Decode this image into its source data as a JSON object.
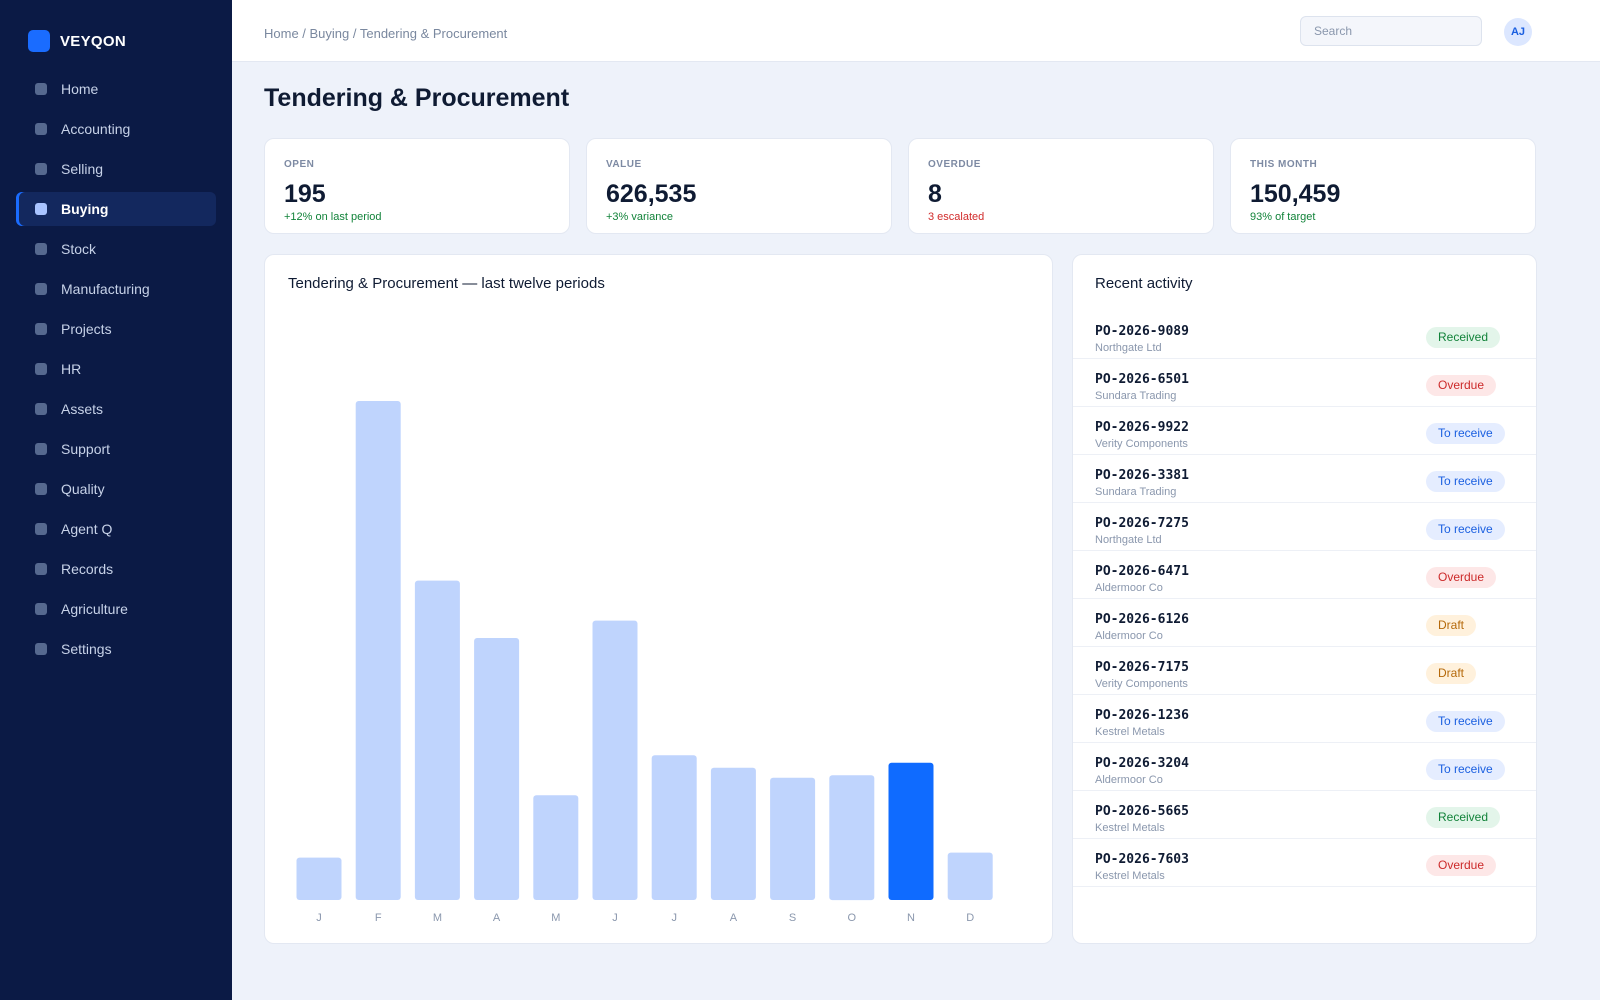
{
  "brand": {
    "name": "VEYQON",
    "accent": "#1a6cff"
  },
  "sidebar": {
    "items": [
      {
        "label": "Home",
        "active": false
      },
      {
        "label": "Accounting",
        "active": false
      },
      {
        "label": "Selling",
        "active": false
      },
      {
        "label": "Buying",
        "active": true
      },
      {
        "label": "Stock",
        "active": false
      },
      {
        "label": "Manufacturing",
        "active": false
      },
      {
        "label": "Projects",
        "active": false
      },
      {
        "label": "HR",
        "active": false
      },
      {
        "label": "Assets",
        "active": false
      },
      {
        "label": "Support",
        "active": false
      },
      {
        "label": "Quality",
        "active": false
      },
      {
        "label": "Agent Q",
        "active": false
      },
      {
        "label": "Records",
        "active": false
      },
      {
        "label": "Agriculture",
        "active": false
      },
      {
        "label": "Settings",
        "active": false
      }
    ]
  },
  "header": {
    "breadcrumb": "Home / Buying / Tendering & Procurement",
    "search_placeholder": "Search",
    "avatar_initials": "AJ"
  },
  "page": {
    "title": "Tendering & Procurement"
  },
  "kpis": [
    {
      "label": "OPEN",
      "value": "195",
      "note": "+12% on last period",
      "tone": "pos"
    },
    {
      "label": "VALUE",
      "value": "626,535",
      "note": "+3% variance",
      "tone": "pos"
    },
    {
      "label": "OVERDUE",
      "value": "8",
      "note": "3 escalated",
      "tone": "neg"
    },
    {
      "label": "THIS MONTH",
      "value": "150,459",
      "note": "93% of target",
      "tone": "pos"
    }
  ],
  "chart": {
    "title": "Tendering & Procurement — last twelve periods"
  },
  "chart_data": {
    "type": "bar",
    "title": "Tendering & Procurement — last twelve periods",
    "categories": [
      "J",
      "F",
      "M",
      "A",
      "M",
      "J",
      "J",
      "A",
      "S",
      "O",
      "N",
      "D"
    ],
    "values": [
      8.5,
      100,
      64,
      52.5,
      21,
      56,
      29,
      26.5,
      24.5,
      25,
      27.5,
      9.5
    ],
    "highlight_index": 10,
    "ylim": [
      0,
      100
    ],
    "grid": false,
    "xlabel": "",
    "ylabel": "",
    "colors": {
      "bar": "#bfd4fd",
      "highlight": "#0f6bff",
      "tick": "#8a97ad"
    }
  },
  "activity": {
    "title": "Recent activity",
    "items": [
      {
        "id": "PO-2026-9089",
        "party": "Northgate Ltd",
        "status": "Received",
        "kind": "received"
      },
      {
        "id": "PO-2026-6501",
        "party": "Sundara Trading",
        "status": "Overdue",
        "kind": "overdue"
      },
      {
        "id": "PO-2026-9922",
        "party": "Verity Components",
        "status": "To receive",
        "kind": "toreceive"
      },
      {
        "id": "PO-2026-3381",
        "party": "Sundara Trading",
        "status": "To receive",
        "kind": "toreceive"
      },
      {
        "id": "PO-2026-7275",
        "party": "Northgate Ltd",
        "status": "To receive",
        "kind": "toreceive"
      },
      {
        "id": "PO-2026-6471",
        "party": "Aldermoor Co",
        "status": "Overdue",
        "kind": "overdue"
      },
      {
        "id": "PO-2026-6126",
        "party": "Aldermoor Co",
        "status": "Draft",
        "kind": "draft"
      },
      {
        "id": "PO-2026-7175",
        "party": "Verity Components",
        "status": "Draft",
        "kind": "draft"
      },
      {
        "id": "PO-2026-1236",
        "party": "Kestrel Metals",
        "status": "To receive",
        "kind": "toreceive"
      },
      {
        "id": "PO-2026-3204",
        "party": "Aldermoor Co",
        "status": "To receive",
        "kind": "toreceive"
      },
      {
        "id": "PO-2026-5665",
        "party": "Kestrel Metals",
        "status": "Received",
        "kind": "received"
      },
      {
        "id": "PO-2026-7603",
        "party": "Kestrel Metals",
        "status": "Overdue",
        "kind": "overdue"
      }
    ]
  }
}
